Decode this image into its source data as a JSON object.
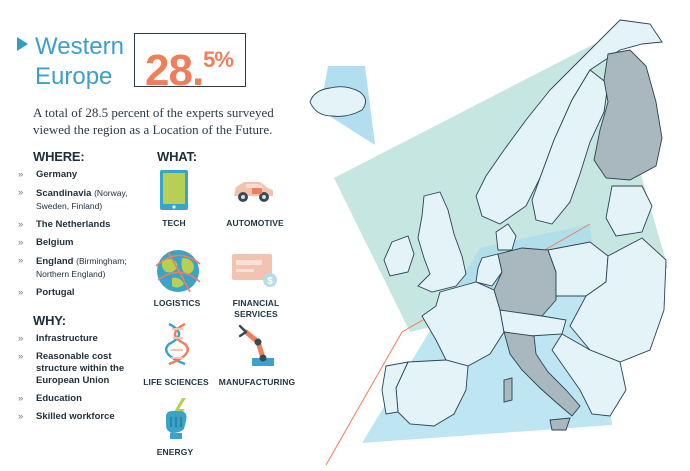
{
  "header": {
    "title_line1": "Western",
    "title_line2": "Europe",
    "pct_main": "28.",
    "pct_sup": "5%"
  },
  "intro": "A total of 28.5 percent of the experts surveyed viewed the region as a Location of the Future.",
  "where": {
    "heading": "WHERE:",
    "items": [
      {
        "label": "Germany",
        "note": ""
      },
      {
        "label": "Scandinavia",
        "note": "(Norway, Sweden, Finland)"
      },
      {
        "label": "The Netherlands",
        "note": ""
      },
      {
        "label": "Belgium",
        "note": ""
      },
      {
        "label": "England",
        "note": "(Birmingham; Northern England)"
      },
      {
        "label": "Portugal",
        "note": ""
      }
    ]
  },
  "why": {
    "heading": "WHY:",
    "items": [
      "Infrastructure",
      "Reasonable cost structure within the European Union",
      "Education",
      "Skilled workforce"
    ]
  },
  "what": {
    "heading": "WHAT:",
    "items": [
      {
        "label": "TECH",
        "icon": "tablet-icon"
      },
      {
        "label": "AUTOMOTIVE",
        "icon": "car-icon"
      },
      {
        "label": "LOGISTICS",
        "icon": "globe-routes-icon"
      },
      {
        "label": "FINANCIAL SERVICES",
        "icon": "credit-card-icon"
      },
      {
        "label": "LIFE SCIENCES",
        "icon": "dna-icon"
      },
      {
        "label": "MANUFACTURING",
        "icon": "robot-arm-icon"
      },
      {
        "label": "ENERGY",
        "icon": "lightning-fist-icon"
      }
    ]
  },
  "bullet": "»",
  "colors": {
    "accent_blue": "#3d9fc9",
    "accent_orange": "#ef7e5a",
    "highlight_gray": "#a9b7bf",
    "map_land": "#e4f3f7",
    "teal_overlay": "#b6e0da",
    "blue_overlay": "#a8dcee"
  }
}
